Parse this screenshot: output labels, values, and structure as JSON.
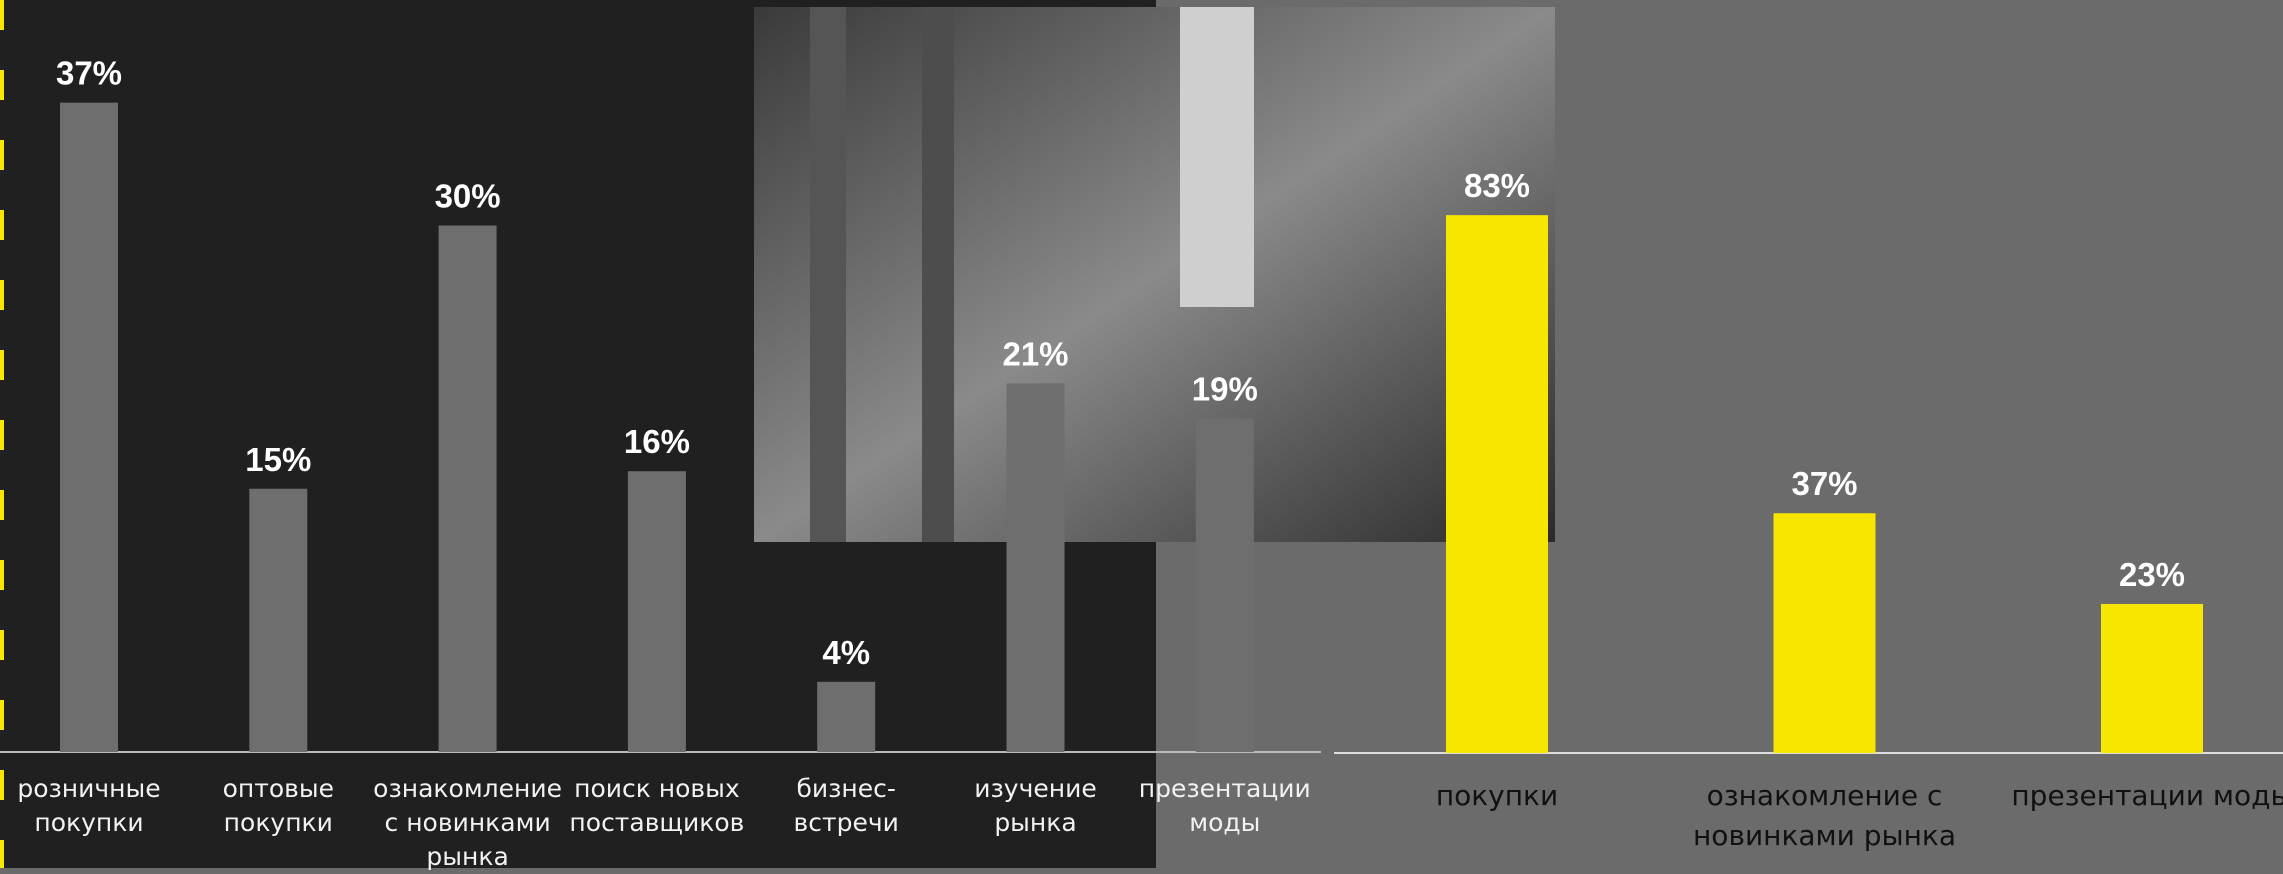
{
  "chart_data": [
    {
      "type": "bar",
      "categories": [
        "розничные покупки",
        "оптовые покупки",
        "ознакомление с новинками рынка",
        "поиск новых поставщиков",
        "бизнес-встречи",
        "изучение рынка",
        "презентации моды"
      ],
      "values": [
        37,
        15,
        30,
        16,
        4,
        21,
        19
      ],
      "value_labels": [
        "37%",
        "15%",
        "30%",
        "16%",
        "4%",
        "21%",
        "19%"
      ],
      "color": "#6e6e6e"
    },
    {
      "type": "bar",
      "categories": [
        "покупки",
        "ознакомление с новинками рынка",
        "презентации моды"
      ],
      "values": [
        83,
        37,
        23
      ],
      "value_labels": [
        "83%",
        "37%",
        "23%"
      ],
      "color": "#f7e600"
    }
  ]
}
